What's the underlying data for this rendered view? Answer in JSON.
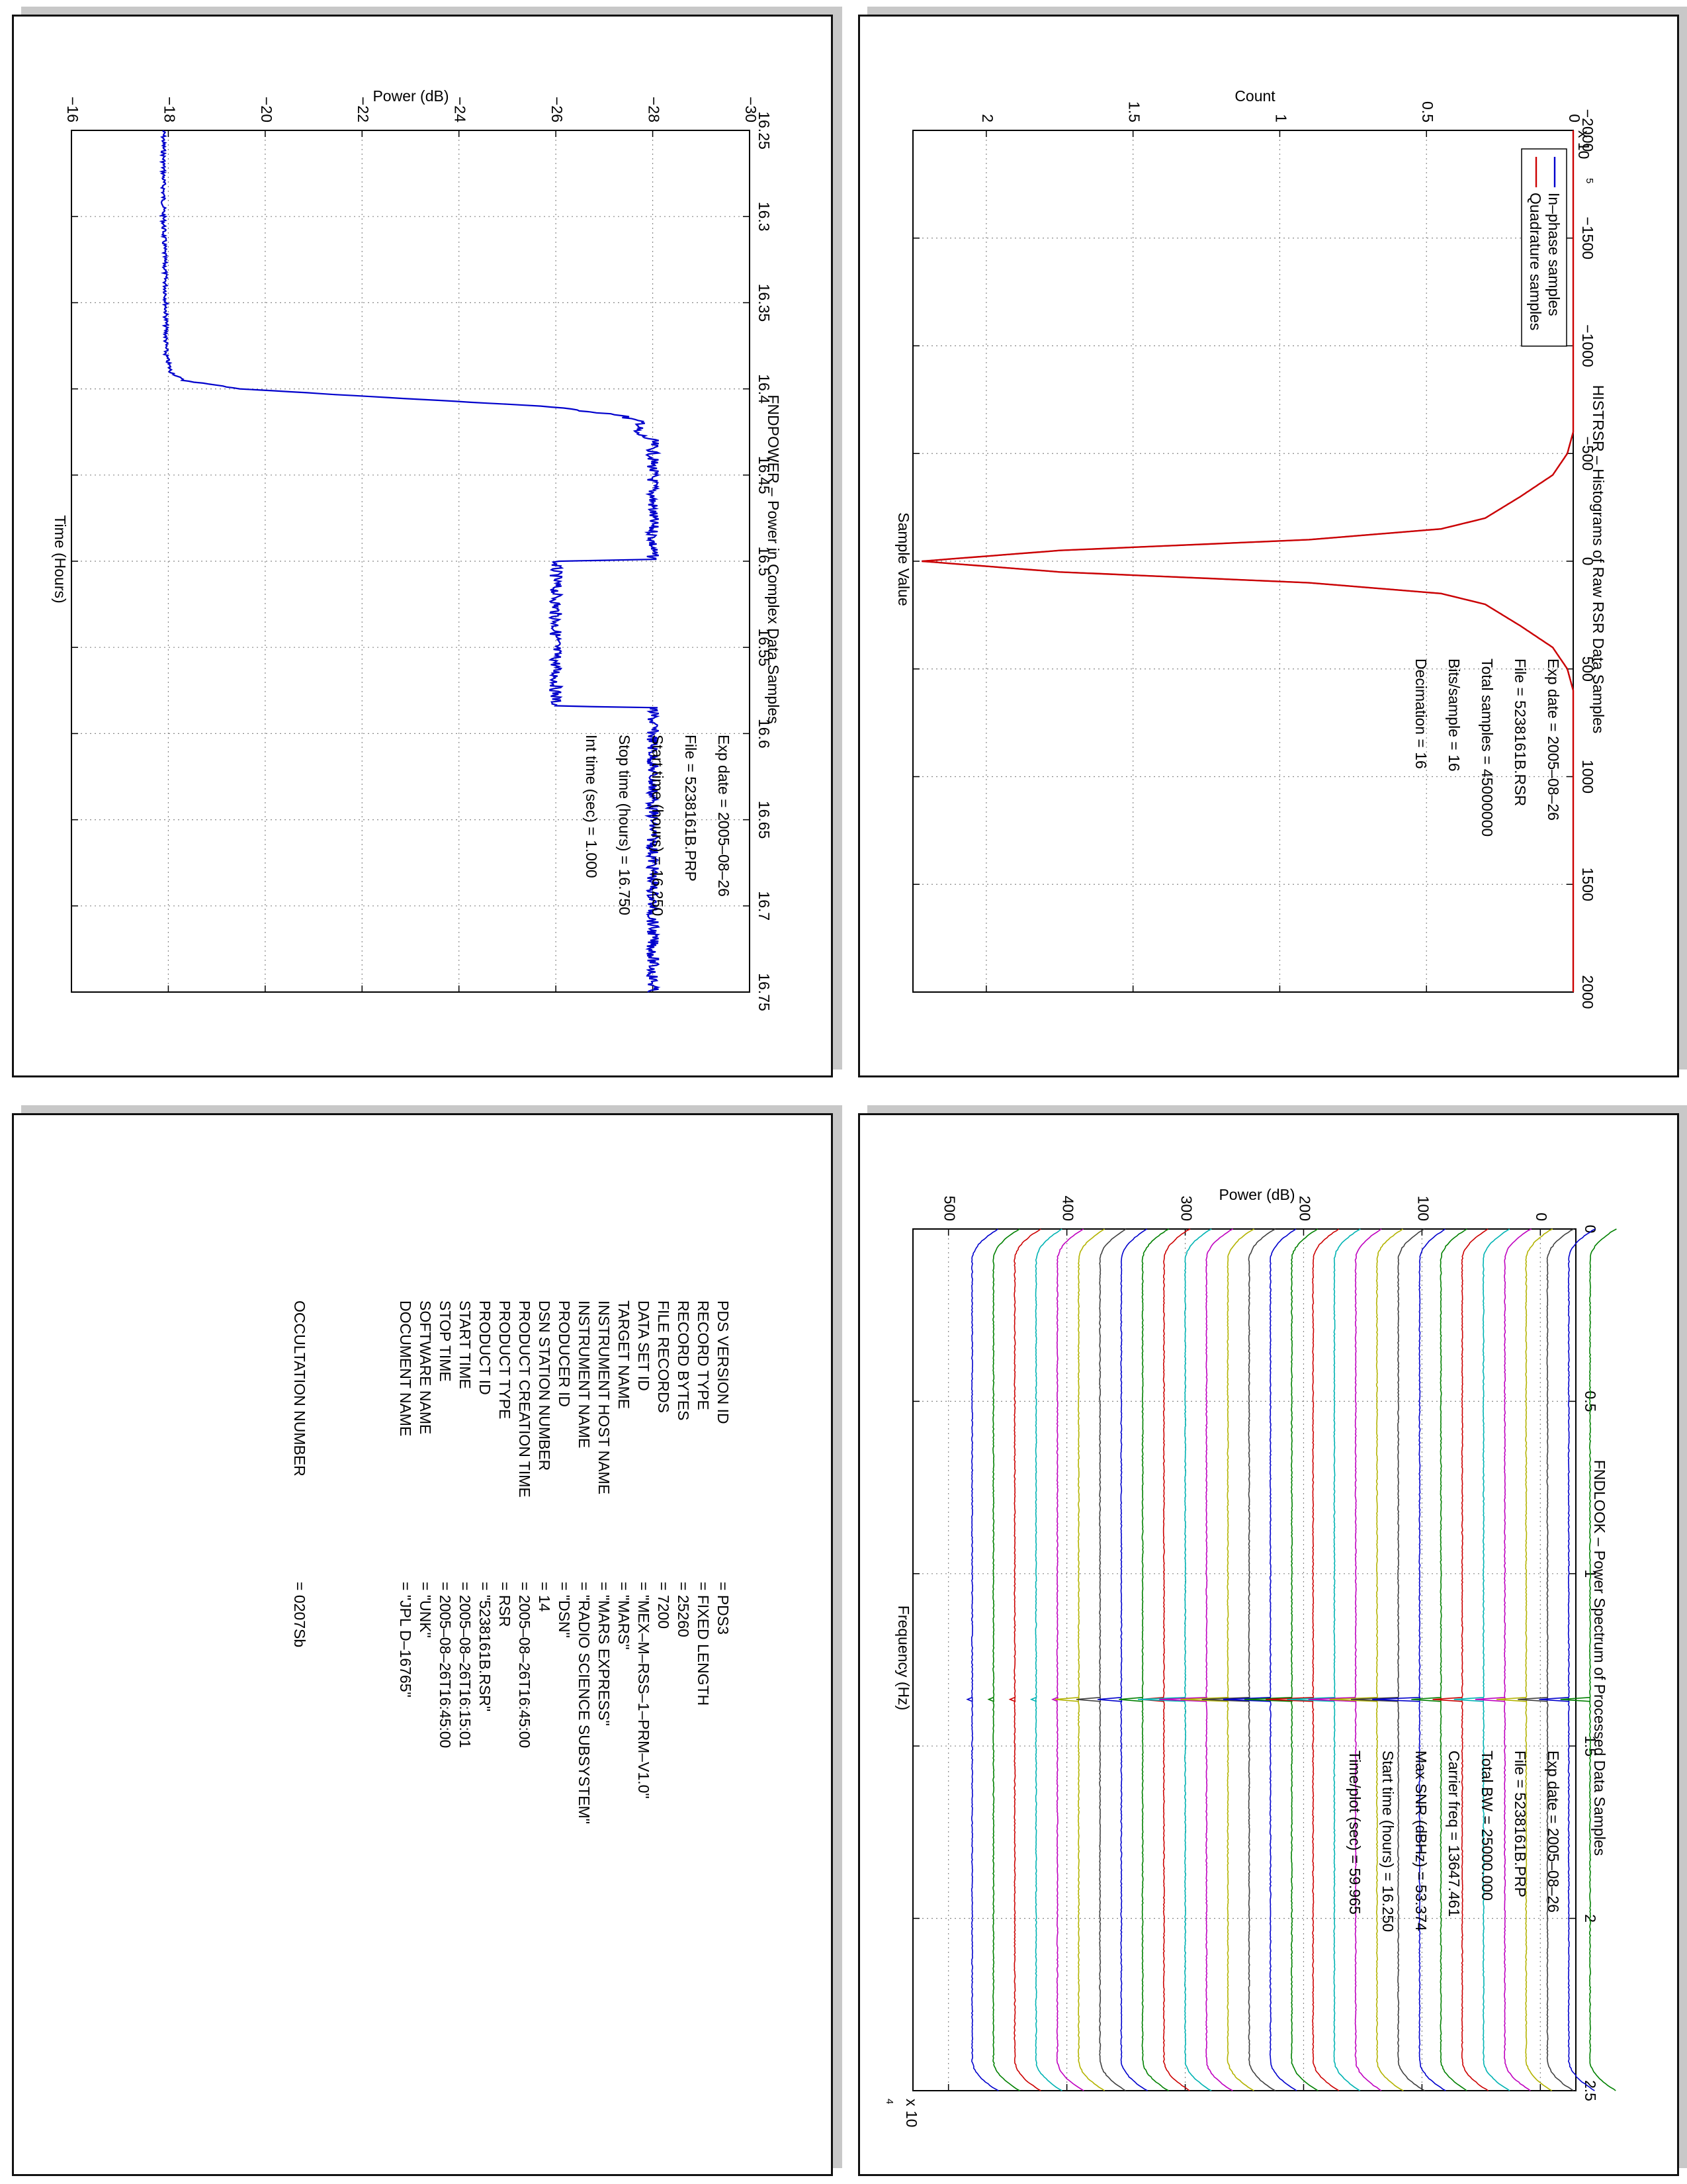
{
  "panels": {
    "fndpower": {
      "title": "FNDPOWER – Power in Complex Data Samples",
      "xlabel": "Time (Hours)",
      "ylabel": "Power (dB)",
      "info": [
        "Exp date = 2005–08–26",
        "File = 5238161B.PRP",
        "Start time (hours) = 16.250",
        "Stop time (hours) = 16.750",
        "Int time (sec) =     1.000"
      ]
    },
    "histrsr": {
      "title": "HISTRSR – Histograms of Raw RSR Data Samples",
      "xlabel": "Sample Value",
      "ylabel": "Count",
      "yscale": "x 10",
      "yscale_exp": "5",
      "legend": [
        "In–phase samples",
        "Quadrature samples"
      ],
      "info": [
        "Exp date = 2005–08–26",
        "File = 5238161B.RSR",
        "Total samples =  45000000",
        "Bits/sample  =         16",
        "Decimation   =         16"
      ]
    },
    "fndlook": {
      "title": "FNDLOOK – Power Spectrum of Processed Data Samples",
      "xlabel": "Frequency (Hz)",
      "ylabel": "Power (dB)",
      "xscale": "x 10",
      "xscale_exp": "4",
      "info": [
        "Exp date = 2005–08–26",
        "File = 5238161B.PRP",
        "Total BW =     25000.000",
        "Carrier freq = 13647.461",
        "Max SNR (dBHz) =    53.374",
        "Start time (hours) = 16.250",
        "Time/plot (sec) =    59.965"
      ]
    }
  },
  "label_table": {
    "rows": [
      {
        "key": "PDS VERSION ID",
        "value": "= PDS3"
      },
      {
        "key": "RECORD TYPE",
        "value": "= FIXED LENGTH"
      },
      {
        "key": "RECORD BYTES",
        "value": "= 25260"
      },
      {
        "key": "FILE RECORDS",
        "value": "= 7200"
      },
      {
        "key": "DATA SET ID",
        "value": "= \"MEX–M–RSS–1–PRM–V1.0\""
      },
      {
        "key": "TARGET NAME",
        "value": "= \"MARS\""
      },
      {
        "key": "INSTRUMENT HOST NAME",
        "value": "= \"MARS EXPRESS\""
      },
      {
        "key": "INSTRUMENT NAME",
        "value": "= \"RADIO SCIENCE SUBSYSTEM\""
      },
      {
        "key": "PRODUCER ID",
        "value": "= \"DSN\""
      },
      {
        "key": "DSN STATION NUMBER",
        "value": "= 14"
      },
      {
        "key": "PRODUCT CREATION TIME",
        "value": "= 2005–08–26T16:45:00"
      },
      {
        "key": "PRODUCT TYPE",
        "value": "= RSR"
      },
      {
        "key": "PRODUCT ID",
        "value": "= \"5238161B.RSR\""
      },
      {
        "key": "START TIME",
        "value": "= 2005–08–26T16:15:01"
      },
      {
        "key": "STOP TIME",
        "value": "= 2005–08–26T16:45:00"
      },
      {
        "key": "SOFTWARE NAME",
        "value": "= \"UNK\""
      },
      {
        "key": "DOCUMENT NAME",
        "value": "= \"JPL D–16765\""
      }
    ],
    "occultation": {
      "key": "OCCULTATION NUMBER",
      "value": "= 0207Sb"
    }
  },
  "chart_data": [
    {
      "type": "line",
      "id": "fndpower",
      "title": "FNDPOWER – Power in Complex Data Samples",
      "xlabel": "Time (Hours)",
      "ylabel": "Power (dB)",
      "xlim": [
        16.25,
        16.75
      ],
      "ylim": [
        -30,
        -16
      ],
      "xticks": [
        16.25,
        16.3,
        16.35,
        16.4,
        16.45,
        16.5,
        16.55,
        16.6,
        16.65,
        16.7,
        16.75
      ],
      "yticks": [
        -30,
        -28,
        -26,
        -24,
        -22,
        -20,
        -18,
        -16
      ],
      "grid": true,
      "color": "#0000cc",
      "series": [
        {
          "x": [
            16.25,
            16.3,
            16.35,
            16.38,
            16.39,
            16.395,
            16.4,
            16.405,
            16.41,
            16.415,
            16.42,
            16.425,
            16.43,
            16.44,
            16.45,
            16.47,
            16.499,
            16.5,
            16.52,
            16.55,
            16.584,
            16.585,
            16.6,
            16.65,
            16.7,
            16.75
          ],
          "y": [
            -17.9,
            -17.9,
            -17.95,
            -17.95,
            -18.05,
            -18.3,
            -19.5,
            -22.5,
            -25.7,
            -27.3,
            -27.8,
            -27.6,
            -28.0,
            -28.0,
            -28.0,
            -28.0,
            -28.0,
            -26.0,
            -26.0,
            -26.0,
            -26.0,
            -28.0,
            -28.0,
            -28.0,
            -28.0,
            -28.0
          ]
        }
      ]
    },
    {
      "type": "line",
      "id": "histrsr",
      "title": "HISTRSR – Histograms of Raw RSR Data Samples",
      "xlabel": "Sample Value",
      "ylabel": "Count",
      "xlim": [
        -2000,
        2000
      ],
      "ylim": [
        0,
        225000
      ],
      "xticks": [
        -2000,
        -1500,
        -1000,
        -500,
        0,
        500,
        1000,
        1500,
        2000
      ],
      "yticks": [
        0,
        0.5,
        1,
        1.5,
        2
      ],
      "grid": true,
      "legend_position": "top-left",
      "series": [
        {
          "name": "In–phase samples",
          "color": "#0000cc",
          "x": [
            -2000,
            -600,
            -500,
            -400,
            -300,
            -200,
            -150,
            -100,
            -50,
            0,
            50,
            100,
            150,
            200,
            300,
            400,
            500,
            600,
            2000
          ],
          "y": [
            0,
            0,
            2000,
            7000,
            18000,
            30000,
            45000,
            90000,
            175000,
            222000,
            175000,
            90000,
            45000,
            30000,
            18000,
            7000,
            2000,
            0,
            0
          ]
        },
        {
          "name": "Quadrature samples",
          "color": "#cc0000",
          "x": [
            -2000,
            -600,
            -500,
            -400,
            -300,
            -200,
            -150,
            -100,
            -50,
            0,
            50,
            100,
            150,
            200,
            300,
            400,
            500,
            600,
            2000
          ],
          "y": [
            0,
            0,
            2000,
            7000,
            18000,
            30000,
            45000,
            90000,
            175000,
            222000,
            175000,
            90000,
            45000,
            30000,
            18000,
            7000,
            2000,
            0,
            0
          ]
        }
      ]
    },
    {
      "type": "line",
      "id": "fndlook",
      "title": "FNDLOOK – Power Spectrum of Processed Data Samples",
      "xlabel": "Frequency (Hz)",
      "ylabel": "Power (dB)",
      "xlim": [
        0,
        25000
      ],
      "ylim": [
        -30,
        530
      ],
      "xticks": [
        0,
        0.5,
        1,
        1.5,
        2,
        2.5
      ],
      "yticks": [
        0,
        100,
        200,
        300,
        400,
        500
      ],
      "grid": true,
      "curve_count": 30,
      "curve_spacing_db": 18,
      "carrier_freq": 13647.461,
      "colors": [
        "#0000cc",
        "#008000",
        "#cc0000",
        "#00b3b3",
        "#bf00bf",
        "#b3b300",
        "#404040"
      ]
    }
  ]
}
